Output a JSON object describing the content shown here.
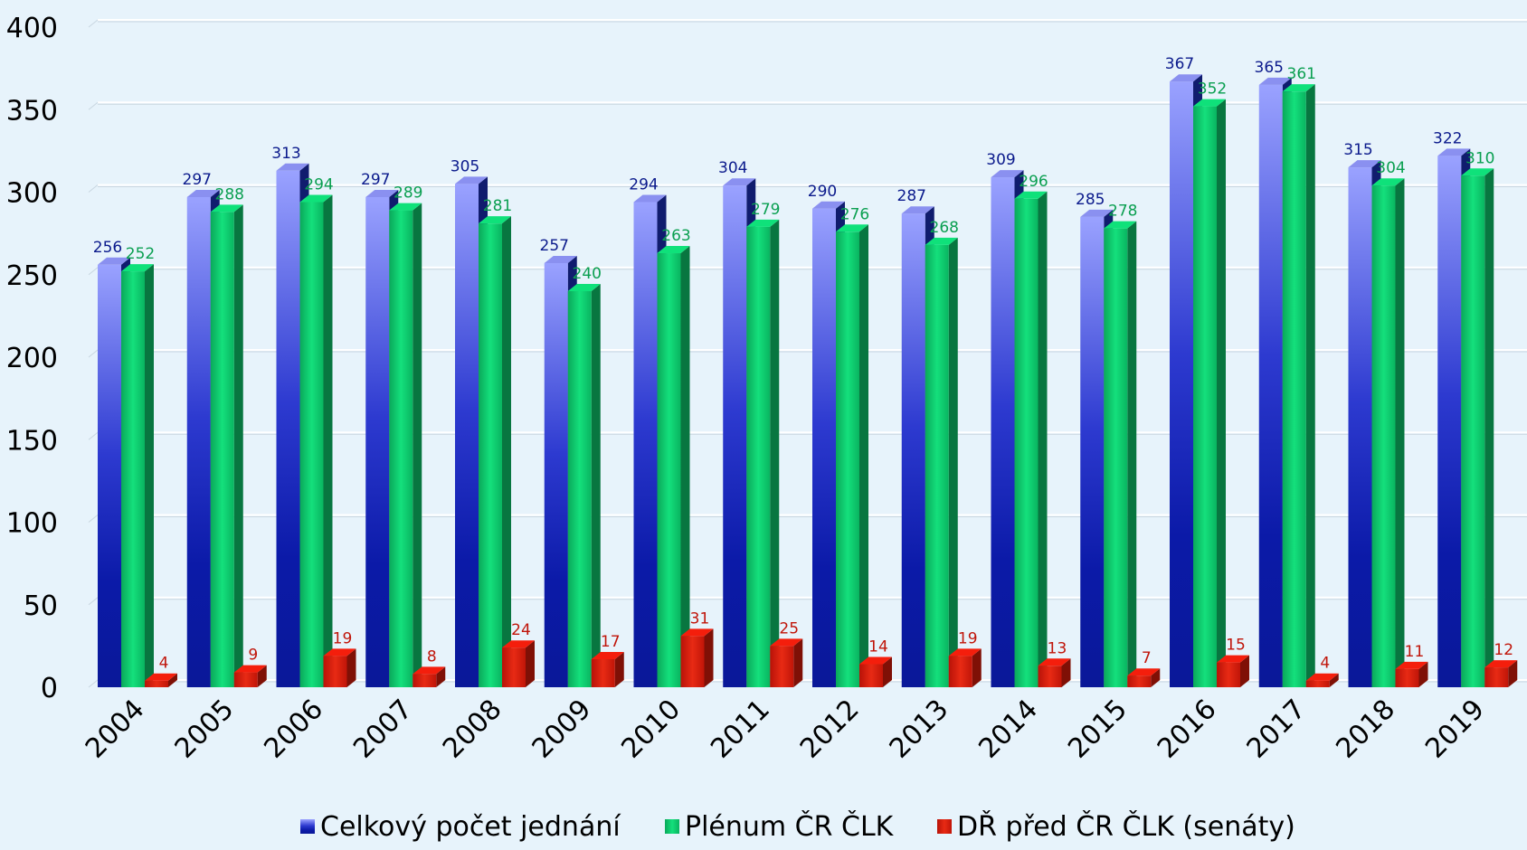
{
  "chart_data": {
    "type": "bar",
    "categories": [
      "2004",
      "2005",
      "2006",
      "2007",
      "2008",
      "2009",
      "2010",
      "2011",
      "2012",
      "2013",
      "2014",
      "2015",
      "2016",
      "2017",
      "2018",
      "2019"
    ],
    "series": [
      {
        "name": "Celkový počet jednání",
        "color": "#1a2fb8",
        "label_color": "#0b1a8c",
        "values": [
          256,
          297,
          313,
          297,
          305,
          257,
          294,
          304,
          290,
          287,
          309,
          285,
          367,
          365,
          315,
          322
        ]
      },
      {
        "name": "Plénum ČR ČLK",
        "color": "#0dc46a",
        "label_color": "#0a9f50",
        "values": [
          252,
          288,
          294,
          289,
          281,
          240,
          263,
          279,
          276,
          268,
          296,
          278,
          352,
          361,
          304,
          310
        ]
      },
      {
        "name": "DŘ před ČR ČLK (senáty)",
        "color": "#d41a0a",
        "label_color": "#c0150a",
        "values": [
          4,
          9,
          19,
          8,
          24,
          17,
          31,
          25,
          14,
          19,
          13,
          7,
          15,
          4,
          11,
          12
        ]
      }
    ],
    "ylim": [
      0,
      400
    ],
    "yticks": [
      0,
      50,
      100,
      150,
      200,
      250,
      300,
      350,
      400
    ],
    "grid": true,
    "legend_position": "bottom",
    "title": "",
    "xlabel": "",
    "ylabel": ""
  }
}
